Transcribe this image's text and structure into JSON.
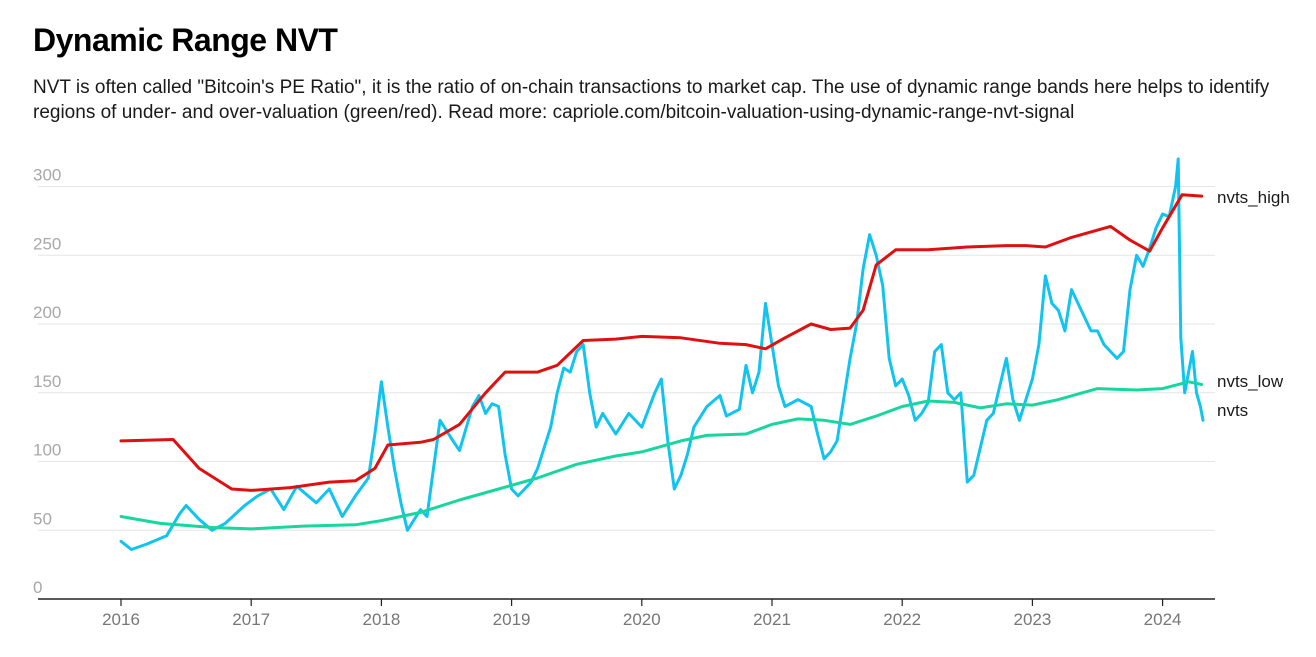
{
  "title": "Dynamic Range NVT",
  "subtitle": "NVT is often called \"Bitcoin's PE Ratio\", it is the ratio of on-chain transactions to market cap. The use of dynamic range bands here helps to identify regions of under- and over-valuation (green/red). Read more: capriole.com/bitcoin-valuation-using-dynamic-range-nvt-signal",
  "chart_data": {
    "type": "line",
    "ylim": [
      0,
      300
    ],
    "yticks": [
      0,
      50,
      100,
      150,
      200,
      250,
      300
    ],
    "xticks": [
      "2016",
      "2017",
      "2018",
      "2019",
      "2020",
      "2021",
      "2022",
      "2023",
      "2024"
    ],
    "grid": true,
    "series": [
      {
        "name": "nvts_high",
        "color": "#e01010",
        "points": [
          [
            2016.0,
            115
          ],
          [
            2016.4,
            116
          ],
          [
            2016.6,
            95
          ],
          [
            2016.85,
            80
          ],
          [
            2017.0,
            79
          ],
          [
            2017.3,
            81
          ],
          [
            2017.6,
            85
          ],
          [
            2017.8,
            86
          ],
          [
            2017.95,
            95
          ],
          [
            2018.05,
            112
          ],
          [
            2018.3,
            114
          ],
          [
            2018.4,
            116
          ],
          [
            2018.6,
            127
          ],
          [
            2018.8,
            150
          ],
          [
            2018.95,
            165
          ],
          [
            2019.2,
            165
          ],
          [
            2019.35,
            170
          ],
          [
            2019.55,
            188
          ],
          [
            2019.8,
            189
          ],
          [
            2020.0,
            191
          ],
          [
            2020.3,
            190
          ],
          [
            2020.6,
            186
          ],
          [
            2020.8,
            185
          ],
          [
            2020.95,
            182
          ],
          [
            2021.1,
            190
          ],
          [
            2021.3,
            200
          ],
          [
            2021.45,
            196
          ],
          [
            2021.6,
            197
          ],
          [
            2021.7,
            210
          ],
          [
            2021.8,
            243
          ],
          [
            2021.95,
            254
          ],
          [
            2022.2,
            254
          ],
          [
            2022.5,
            256
          ],
          [
            2022.8,
            257
          ],
          [
            2022.95,
            257
          ],
          [
            2023.1,
            256
          ],
          [
            2023.3,
            263
          ],
          [
            2023.6,
            271
          ],
          [
            2023.75,
            261
          ],
          [
            2023.9,
            253
          ],
          [
            2024.0,
            270
          ],
          [
            2024.15,
            294
          ],
          [
            2024.3,
            293
          ]
        ]
      },
      {
        "name": "nvts_low",
        "color": "#17d69e",
        "points": [
          [
            2016.0,
            60
          ],
          [
            2016.3,
            55
          ],
          [
            2016.7,
            52
          ],
          [
            2017.0,
            51
          ],
          [
            2017.4,
            53
          ],
          [
            2017.8,
            54
          ],
          [
            2018.0,
            57
          ],
          [
            2018.3,
            63
          ],
          [
            2018.6,
            72
          ],
          [
            2018.9,
            80
          ],
          [
            2019.2,
            88
          ],
          [
            2019.5,
            98
          ],
          [
            2019.8,
            104
          ],
          [
            2020.0,
            107
          ],
          [
            2020.3,
            115
          ],
          [
            2020.5,
            119
          ],
          [
            2020.8,
            120
          ],
          [
            2021.0,
            127
          ],
          [
            2021.2,
            131
          ],
          [
            2021.4,
            130
          ],
          [
            2021.6,
            127
          ],
          [
            2021.8,
            133
          ],
          [
            2022.0,
            140
          ],
          [
            2022.2,
            144
          ],
          [
            2022.4,
            143
          ],
          [
            2022.6,
            139
          ],
          [
            2022.8,
            142
          ],
          [
            2023.0,
            141
          ],
          [
            2023.2,
            145
          ],
          [
            2023.5,
            153
          ],
          [
            2023.8,
            152
          ],
          [
            2024.0,
            153
          ],
          [
            2024.2,
            158
          ],
          [
            2024.3,
            156
          ]
        ]
      },
      {
        "name": "nvts",
        "color": "#11c4f0",
        "points": [
          [
            2016.0,
            42
          ],
          [
            2016.08,
            36
          ],
          [
            2016.2,
            40
          ],
          [
            2016.35,
            46
          ],
          [
            2016.45,
            62
          ],
          [
            2016.5,
            68
          ],
          [
            2016.6,
            58
          ],
          [
            2016.7,
            50
          ],
          [
            2016.8,
            55
          ],
          [
            2016.95,
            68
          ],
          [
            2017.05,
            75
          ],
          [
            2017.15,
            80
          ],
          [
            2017.25,
            65
          ],
          [
            2017.35,
            82
          ],
          [
            2017.5,
            70
          ],
          [
            2017.6,
            80
          ],
          [
            2017.7,
            60
          ],
          [
            2017.8,
            75
          ],
          [
            2017.9,
            88
          ],
          [
            2017.95,
            120
          ],
          [
            2018.0,
            158
          ],
          [
            2018.05,
            125
          ],
          [
            2018.1,
            95
          ],
          [
            2018.15,
            70
          ],
          [
            2018.2,
            50
          ],
          [
            2018.3,
            65
          ],
          [
            2018.35,
            60
          ],
          [
            2018.4,
            95
          ],
          [
            2018.45,
            130
          ],
          [
            2018.55,
            115
          ],
          [
            2018.6,
            108
          ],
          [
            2018.7,
            140
          ],
          [
            2018.75,
            148
          ],
          [
            2018.8,
            135
          ],
          [
            2018.85,
            142
          ],
          [
            2018.9,
            140
          ],
          [
            2018.95,
            105
          ],
          [
            2019.0,
            80
          ],
          [
            2019.05,
            75
          ],
          [
            2019.15,
            85
          ],
          [
            2019.2,
            95
          ],
          [
            2019.3,
            125
          ],
          [
            2019.35,
            150
          ],
          [
            2019.4,
            168
          ],
          [
            2019.45,
            165
          ],
          [
            2019.5,
            180
          ],
          [
            2019.55,
            185
          ],
          [
            2019.6,
            150
          ],
          [
            2019.65,
            125
          ],
          [
            2019.7,
            135
          ],
          [
            2019.8,
            120
          ],
          [
            2019.9,
            135
          ],
          [
            2020.0,
            125
          ],
          [
            2020.1,
            150
          ],
          [
            2020.15,
            160
          ],
          [
            2020.2,
            115
          ],
          [
            2020.25,
            80
          ],
          [
            2020.3,
            90
          ],
          [
            2020.35,
            105
          ],
          [
            2020.4,
            125
          ],
          [
            2020.5,
            140
          ],
          [
            2020.6,
            148
          ],
          [
            2020.65,
            133
          ],
          [
            2020.75,
            138
          ],
          [
            2020.8,
            170
          ],
          [
            2020.85,
            150
          ],
          [
            2020.9,
            165
          ],
          [
            2020.95,
            215
          ],
          [
            2021.0,
            185
          ],
          [
            2021.05,
            155
          ],
          [
            2021.1,
            140
          ],
          [
            2021.2,
            145
          ],
          [
            2021.3,
            140
          ],
          [
            2021.35,
            120
          ],
          [
            2021.4,
            102
          ],
          [
            2021.45,
            107
          ],
          [
            2021.5,
            115
          ],
          [
            2021.55,
            145
          ],
          [
            2021.6,
            175
          ],
          [
            2021.65,
            200
          ],
          [
            2021.7,
            240
          ],
          [
            2021.75,
            265
          ],
          [
            2021.8,
            250
          ],
          [
            2021.85,
            228
          ],
          [
            2021.9,
            175
          ],
          [
            2021.95,
            155
          ],
          [
            2022.0,
            160
          ],
          [
            2022.05,
            148
          ],
          [
            2022.1,
            130
          ],
          [
            2022.15,
            135
          ],
          [
            2022.2,
            143
          ],
          [
            2022.25,
            180
          ],
          [
            2022.3,
            185
          ],
          [
            2022.35,
            150
          ],
          [
            2022.4,
            145
          ],
          [
            2022.45,
            150
          ],
          [
            2022.5,
            85
          ],
          [
            2022.55,
            90
          ],
          [
            2022.6,
            110
          ],
          [
            2022.65,
            130
          ],
          [
            2022.7,
            135
          ],
          [
            2022.75,
            155
          ],
          [
            2022.8,
            175
          ],
          [
            2022.85,
            145
          ],
          [
            2022.9,
            130
          ],
          [
            2022.95,
            145
          ],
          [
            2023.0,
            160
          ],
          [
            2023.05,
            185
          ],
          [
            2023.1,
            235
          ],
          [
            2023.15,
            215
          ],
          [
            2023.2,
            210
          ],
          [
            2023.25,
            195
          ],
          [
            2023.3,
            225
          ],
          [
            2023.35,
            215
          ],
          [
            2023.4,
            205
          ],
          [
            2023.45,
            195
          ],
          [
            2023.5,
            195
          ],
          [
            2023.55,
            185
          ],
          [
            2023.6,
            180
          ],
          [
            2023.65,
            175
          ],
          [
            2023.7,
            180
          ],
          [
            2023.75,
            225
          ],
          [
            2023.8,
            250
          ],
          [
            2023.85,
            242
          ],
          [
            2023.9,
            255
          ],
          [
            2023.95,
            270
          ],
          [
            2024.0,
            280
          ],
          [
            2024.05,
            278
          ],
          [
            2024.1,
            300
          ],
          [
            2024.12,
            320
          ],
          [
            2024.14,
            190
          ],
          [
            2024.17,
            150
          ],
          [
            2024.2,
            165
          ],
          [
            2024.23,
            180
          ],
          [
            2024.26,
            150
          ],
          [
            2024.29,
            140
          ],
          [
            2024.31,
            130
          ]
        ]
      }
    ]
  }
}
